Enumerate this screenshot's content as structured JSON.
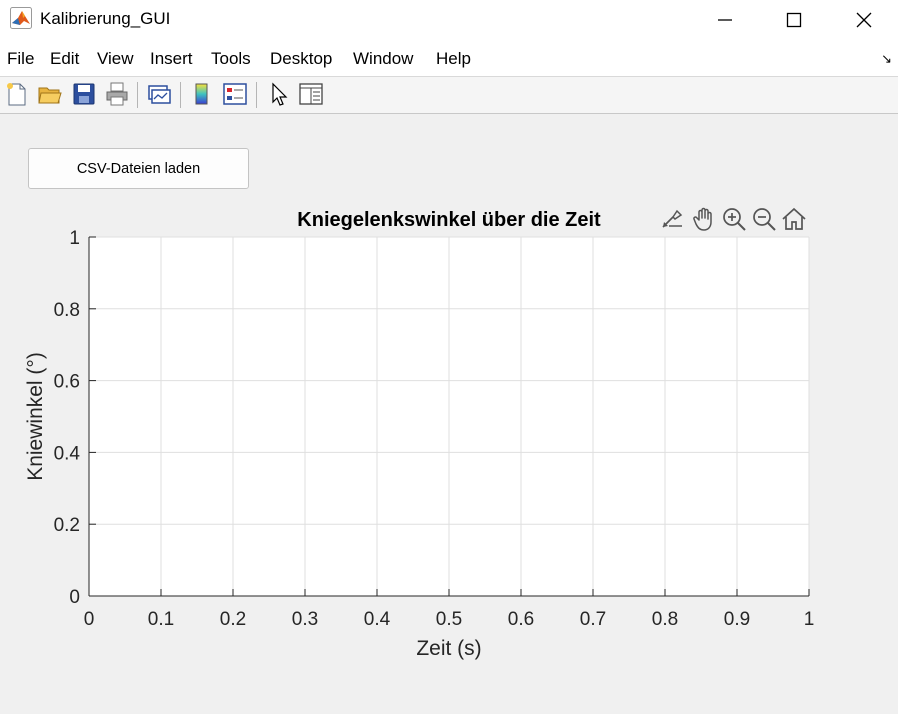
{
  "window": {
    "title": "Kalibrierung_GUI"
  },
  "menu": [
    "File",
    "Edit",
    "View",
    "Insert",
    "Tools",
    "Desktop",
    "Window",
    "Help"
  ],
  "toolbar_icons": [
    "new-file-icon",
    "open-folder-icon",
    "save-icon",
    "print-icon",
    "link-plot-icon",
    "colorbar-icon",
    "legend-icon",
    "pointer-icon",
    "property-inspector-icon"
  ],
  "load_button": {
    "label": "CSV-Dateien laden"
  },
  "axes_toolbar": [
    "brush-icon",
    "pan-icon",
    "zoom-in-icon",
    "zoom-out-icon",
    "home-icon"
  ],
  "chart_data": {
    "type": "line",
    "title": "Kniegelenkswinkel über die Zeit",
    "xlabel": "Zeit (s)",
    "ylabel": "Kniewinkel (°)",
    "xlim": [
      0,
      1
    ],
    "ylim": [
      0,
      1
    ],
    "xticks": [
      "0",
      "0.1",
      "0.2",
      "0.3",
      "0.4",
      "0.5",
      "0.6",
      "0.7",
      "0.8",
      "0.9",
      "1"
    ],
    "yticks": [
      "0",
      "0.2",
      "0.4",
      "0.6",
      "0.8",
      "1"
    ],
    "grid": true,
    "series": []
  }
}
